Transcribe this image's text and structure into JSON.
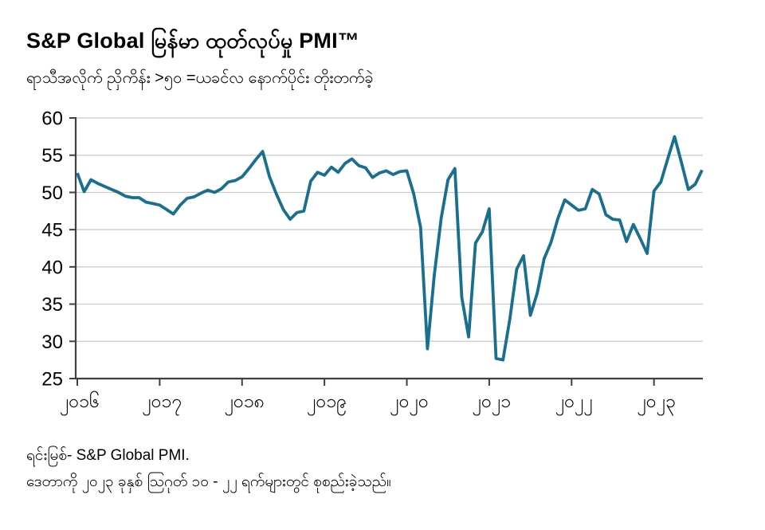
{
  "header": {
    "title": "S&P Global မြန်မာ ထုတ်လုပ်မှု PMI™",
    "subtitle": "ရာသီအလိုက် ညှိကိန်း >၅၀ =ယခင်လ နောက်ပိုင်း တိုးတက်ခဲ့"
  },
  "footer": {
    "source": "ရင်းမြစ်- S&P Global PMI.",
    "note": "ဒေတာကို ၂၀၂၃ ခုနှစ် သြဂုတ် ၁၀ - ၂၂ ရက်များတွင် စုစည်းခဲ့သည်။"
  },
  "chart_data": {
    "type": "line",
    "title": "S&P Global မြန်မာ ထုတ်လုပ်မှု PMI™",
    "subtitle": "ရာသီအလိုက် ညှိကိန်း >၅၀ =ယခင်လ နောက်ပိုင်း တိုးတက်ခဲ့",
    "series": [
      {
        "name": "Myanmar Manufacturing PMI",
        "frequency": "monthly",
        "x_start": "2016-01",
        "x_end": "2023-08",
        "values": [
          52.6,
          50.1,
          51.7,
          51.2,
          50.8,
          50.4,
          50.0,
          49.5,
          49.3,
          49.3,
          48.7,
          48.5,
          48.3,
          47.7,
          47.1,
          48.3,
          49.2,
          49.4,
          49.9,
          50.3,
          50.0,
          50.5,
          51.4,
          51.6,
          52.1,
          53.2,
          54.4,
          55.5,
          52.1,
          49.8,
          47.7,
          46.4,
          47.3,
          47.5,
          51.5,
          52.7,
          52.3,
          53.4,
          52.7,
          53.9,
          54.5,
          53.6,
          53.3,
          52.0,
          52.6,
          52.9,
          52.4,
          52.8,
          52.9,
          49.8,
          45.3,
          29.0,
          38.9,
          46.5,
          51.7,
          53.2,
          35.9,
          30.6,
          43.2,
          44.7,
          47.8,
          27.7,
          27.5,
          33.0,
          39.7,
          41.5,
          33.5,
          36.5,
          41.1,
          43.3,
          46.5,
          49.0,
          48.3,
          47.6,
          47.8,
          50.4,
          49.8,
          47.0,
          46.4,
          46.3,
          43.4,
          45.7,
          43.8,
          41.8,
          50.2,
          51.4,
          54.5,
          57.5,
          54.0,
          50.4,
          51.1,
          53.0
        ]
      }
    ],
    "x_tick_labels": [
      "၂၀၁၆",
      "၂၀၁၇",
      "၂၀၁၈",
      "၂၀၁၉",
      "၂၀၂၀",
      "၂၀၂၁",
      "၂၀၂၂",
      "၂၀၂၃"
    ],
    "x_tick_years": [
      2016,
      2017,
      2018,
      2019,
      2020,
      2021,
      2022,
      2023
    ],
    "y_ticks": [
      25,
      30,
      35,
      40,
      45,
      50,
      55,
      60
    ],
    "ylim": [
      25,
      60
    ],
    "grid": "horizontal",
    "legend": "none",
    "line_color": "#186F8E",
    "axis_color": "#3f3f3f",
    "grid_color": "#c9c9c9"
  }
}
